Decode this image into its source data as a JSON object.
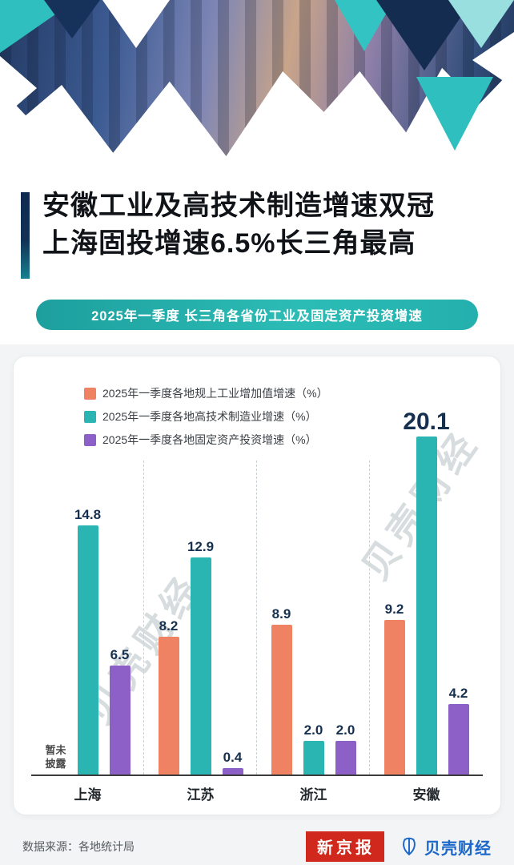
{
  "title": {
    "line1": "安徽工业及高技术制造增速双冠",
    "line2": "上海固投增速6.5%长三角最高"
  },
  "banner": {
    "text": "2025年一季度 长三角各省份工业及固定资产投资增速"
  },
  "watermark": {
    "text": "贝壳财经"
  },
  "chart_data": {
    "type": "bar",
    "title": "2025年一季度 长三角各省份工业及固定资产投资增速",
    "categories": [
      "上海",
      "江苏",
      "浙江",
      "安徽"
    ],
    "series": [
      {
        "name": "2025年一季度各地规上工业增加值增速（%）",
        "color": "#ef8262",
        "values": [
          null,
          8.2,
          8.9,
          9.2
        ]
      },
      {
        "name": "2025年一季度各地高技术制造业增速（%）",
        "color": "#2ab5b2",
        "values": [
          14.8,
          12.9,
          2.0,
          20.1
        ]
      },
      {
        "name": "2025年一季度各地固定资产投资增速（%）",
        "color": "#8c60c6",
        "values": [
          6.5,
          0.4,
          2.0,
          4.2
        ]
      }
    ],
    "null_label": "暂未披露",
    "ylim": [
      0,
      22
    ],
    "legend_position": "top-left",
    "grid": "dashed-vertical-separators"
  },
  "colors": {
    "banner_teal_start": "#1d9f9e",
    "banner_teal_end": "#2cbcb6",
    "title_accent_top": "#0f2a4e",
    "title_accent_bottom": "#17808f",
    "value_label": "#16304f",
    "logo_red": "#d0281c",
    "logo_blue": "#1a66c9"
  },
  "footer": {
    "source": "数据来源：各地统计局",
    "logo_red": "新京报",
    "logo_blue": "贝壳财经",
    "brand_icon": "shell-icon"
  }
}
